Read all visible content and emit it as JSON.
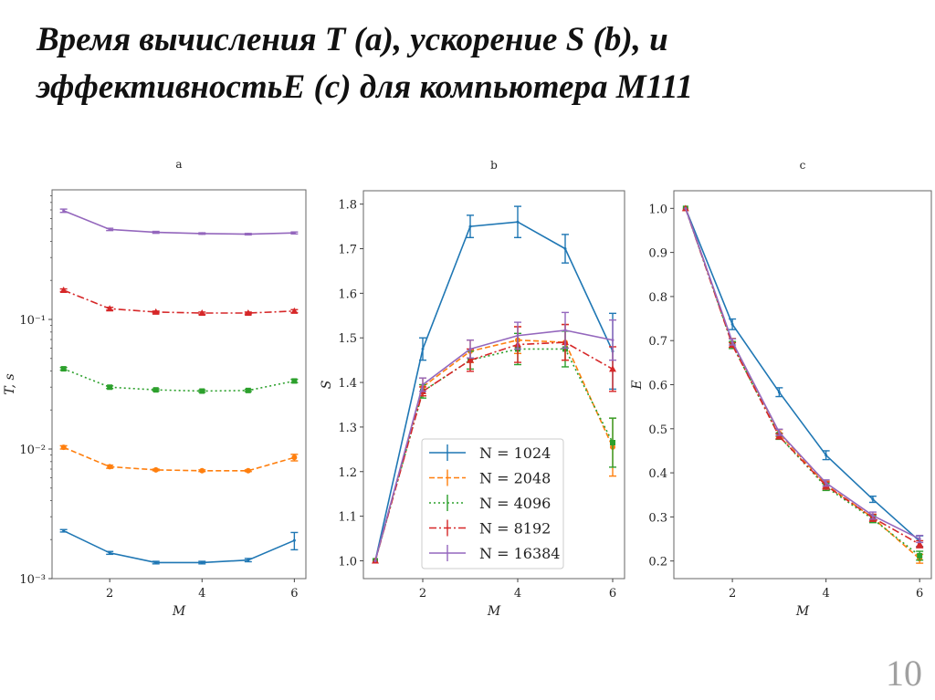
{
  "slide": {
    "title_line1": "Время вычисления T (a), ускорение S (b), и",
    "title_line2": "эффективностьE (c) для компьютера M111",
    "page_number": "10"
  },
  "chart_data": [
    {
      "type": "line",
      "title": "a",
      "xlabel": "M",
      "ylabel": "T, s",
      "yscale": "log",
      "ylim": [
        0.001,
        1.0
      ],
      "xlim": [
        0.75,
        6.25
      ],
      "xticks": [
        2,
        4,
        6
      ],
      "xtick_labels": [
        "2",
        "4",
        "6"
      ],
      "yticks": [
        0.001,
        0.01,
        0.1
      ],
      "ytick_labels": [
        "10⁻³",
        "10⁻²",
        "10⁻¹"
      ],
      "x": [
        1,
        2,
        3,
        4,
        5,
        6
      ],
      "series": [
        {
          "name": "N = 1024",
          "color": "#1f77b4",
          "linestyle": "solid",
          "marker": "none",
          "values": [
            0.00234,
            0.00158,
            0.00133,
            0.00133,
            0.00139,
            0.00197
          ],
          "err": [
            5e-05,
            4e-05,
            3e-05,
            3e-05,
            4e-05,
            0.0003
          ]
        },
        {
          "name": "N = 2048",
          "color": "#ff7f0e",
          "linestyle": "dashed",
          "marker": "circle",
          "values": [
            0.0103,
            0.0073,
            0.0069,
            0.0068,
            0.0068,
            0.0086
          ],
          "err": [
            0.0003,
            0.0002,
            0.0001,
            0.0001,
            0.0001,
            0.0005
          ]
        },
        {
          "name": "N = 4096",
          "color": "#2ca02c",
          "linestyle": "dotted",
          "marker": "square",
          "values": [
            0.0416,
            0.03,
            0.0286,
            0.028,
            0.0283,
            0.0335
          ],
          "err": [
            0.001,
            0.0007,
            0.0005,
            0.0005,
            0.0005,
            0.001
          ]
        },
        {
          "name": "N = 8192",
          "color": "#d62728",
          "linestyle": "dashdot",
          "marker": "triangle",
          "values": [
            0.168,
            0.121,
            0.114,
            0.112,
            0.112,
            0.116
          ],
          "err": [
            0.004,
            0.003,
            0.002,
            0.002,
            0.002,
            0.003
          ]
        },
        {
          "name": "N = 16384",
          "color": "#9467bd",
          "linestyle": "solid",
          "marker": "none",
          "values": [
            0.69,
            0.495,
            0.47,
            0.46,
            0.455,
            0.465
          ],
          "err": [
            0.02,
            0.01,
            0.008,
            0.006,
            0.006,
            0.008
          ]
        }
      ]
    },
    {
      "type": "line",
      "title": "b",
      "xlabel": "M",
      "ylabel": "S",
      "yscale": "linear",
      "ylim": [
        0.96,
        1.83
      ],
      "xlim": [
        0.75,
        6.25
      ],
      "xticks": [
        2,
        4,
        6
      ],
      "xtick_labels": [
        "2",
        "4",
        "6"
      ],
      "yticks": [
        1.0,
        1.1,
        1.2,
        1.3,
        1.4,
        1.5,
        1.6,
        1.7,
        1.8
      ],
      "ytick_labels": [
        "1.0",
        "1.1",
        "1.2",
        "1.3",
        "1.4",
        "1.5",
        "1.6",
        "1.7",
        "1.8"
      ],
      "legend": "lower-center",
      "x": [
        1,
        2,
        3,
        4,
        5,
        6
      ],
      "series": [
        {
          "name": "N = 1024",
          "color": "#1f77b4",
          "linestyle": "solid",
          "marker": "none",
          "values": [
            1.0,
            1.475,
            1.75,
            1.76,
            1.7,
            1.47
          ],
          "err": [
            0,
            0.025,
            0.025,
            0.035,
            0.032,
            0.085
          ]
        },
        {
          "name": "N = 2048",
          "color": "#ff7f0e",
          "linestyle": "dashed",
          "marker": "circle",
          "values": [
            1.0,
            1.39,
            1.47,
            1.495,
            1.49,
            1.255
          ],
          "err": [
            0,
            0.02,
            0.025,
            0.03,
            0.04,
            0.065
          ]
        },
        {
          "name": "N = 4096",
          "color": "#2ca02c",
          "linestyle": "dotted",
          "marker": "square",
          "values": [
            1.0,
            1.38,
            1.45,
            1.475,
            1.475,
            1.265
          ],
          "err": [
            0,
            0.015,
            0.02,
            0.035,
            0.04,
            0.055
          ]
        },
        {
          "name": "N = 8192",
          "color": "#d62728",
          "linestyle": "dashdot",
          "marker": "triangle",
          "values": [
            1.0,
            1.38,
            1.45,
            1.485,
            1.49,
            1.43
          ],
          "err": [
            0,
            0.01,
            0.025,
            0.04,
            0.04,
            0.05
          ]
        },
        {
          "name": "N = 16384",
          "color": "#9467bd",
          "linestyle": "solid",
          "marker": "none",
          "values": [
            1.0,
            1.395,
            1.475,
            1.505,
            1.517,
            1.495
          ],
          "err": [
            0,
            0.015,
            0.02,
            0.03,
            0.04,
            0.045
          ]
        }
      ]
    },
    {
      "type": "line",
      "title": "c",
      "xlabel": "M",
      "ylabel": "E",
      "yscale": "linear",
      "ylim": [
        0.16,
        1.04
      ],
      "xlim": [
        0.75,
        6.25
      ],
      "xticks": [
        2,
        4,
        6
      ],
      "xtick_labels": [
        "2",
        "4",
        "6"
      ],
      "yticks": [
        0.2,
        0.3,
        0.4,
        0.5,
        0.6,
        0.7,
        0.8,
        0.9,
        1.0
      ],
      "ytick_labels": [
        "0.2",
        "0.3",
        "0.4",
        "0.5",
        "0.6",
        "0.7",
        "0.8",
        "0.9",
        "1.0"
      ],
      "x": [
        1,
        2,
        3,
        4,
        5,
        6
      ],
      "series": [
        {
          "name": "N = 1024",
          "color": "#1f77b4",
          "linestyle": "solid",
          "marker": "none",
          "values": [
            1.0,
            0.737,
            0.583,
            0.44,
            0.34,
            0.245
          ],
          "err": [
            0,
            0.012,
            0.01,
            0.01,
            0.007,
            0.012
          ]
        },
        {
          "name": "N = 2048",
          "color": "#ff7f0e",
          "linestyle": "dashed",
          "marker": "circle",
          "values": [
            1.0,
            0.695,
            0.49,
            0.373,
            0.298,
            0.205
          ],
          "err": [
            0,
            0.01,
            0.008,
            0.008,
            0.008,
            0.01
          ]
        },
        {
          "name": "N = 4096",
          "color": "#2ca02c",
          "linestyle": "dotted",
          "marker": "square",
          "values": [
            1.0,
            0.69,
            0.483,
            0.368,
            0.295,
            0.212
          ],
          "err": [
            0,
            0.008,
            0.007,
            0.008,
            0.008,
            0.01
          ]
        },
        {
          "name": "N = 8192",
          "color": "#d62728",
          "linestyle": "dashdot",
          "marker": "triangle",
          "values": [
            1.0,
            0.69,
            0.483,
            0.371,
            0.298,
            0.238
          ],
          "err": [
            0,
            0.005,
            0.006,
            0.008,
            0.008,
            0.008
          ]
        },
        {
          "name": "N = 16384",
          "color": "#9467bd",
          "linestyle": "solid",
          "marker": "none",
          "values": [
            1.0,
            0.697,
            0.492,
            0.377,
            0.303,
            0.25
          ],
          "err": [
            0,
            0.007,
            0.007,
            0.007,
            0.008,
            0.008
          ]
        }
      ]
    }
  ]
}
